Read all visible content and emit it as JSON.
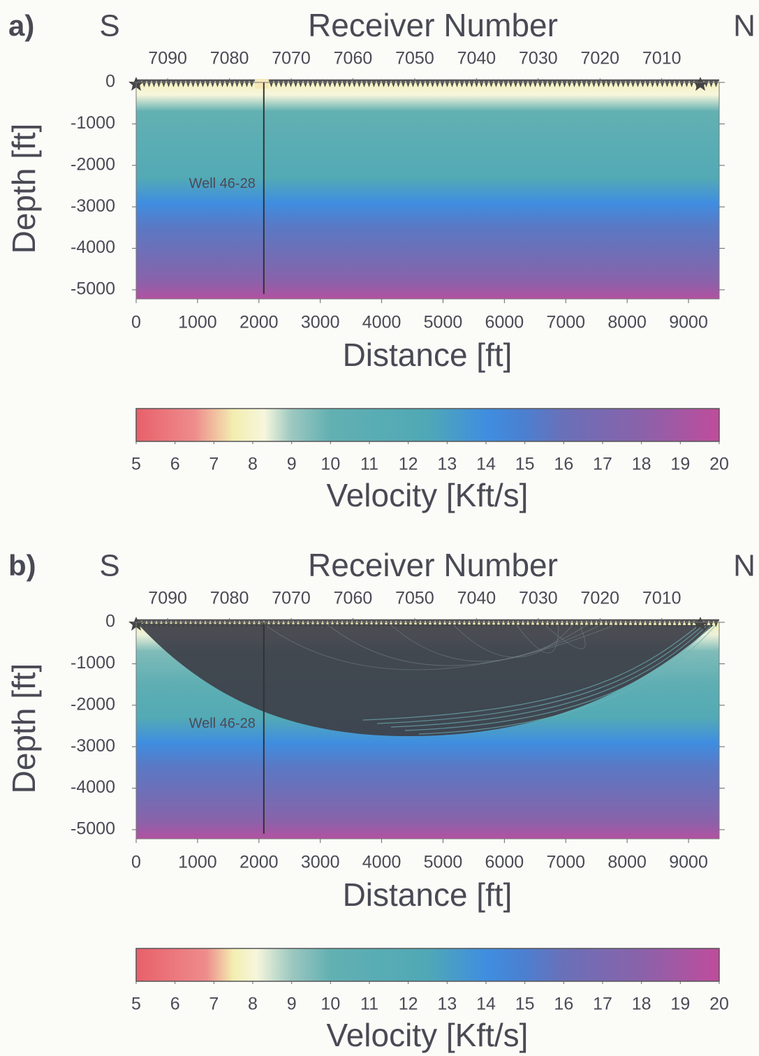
{
  "chart_data": [
    {
      "type": "heatmap",
      "panel_label": "a)",
      "left_label": "S",
      "right_label": "N",
      "x2label": "Receiver Number",
      "x2lim": [
        7095.1,
        7000.7
      ],
      "x2ticks": [
        7090,
        7080,
        7070,
        7060,
        7050,
        7040,
        7030,
        7020,
        7010
      ],
      "xlabel": "Distance [ft]",
      "xlim": [
        0,
        9500
      ],
      "xticks": [
        0,
        1000,
        2000,
        3000,
        4000,
        5000,
        6000,
        7000,
        8000,
        9000
      ],
      "ylabel": "Depth [ft]",
      "ylim": [
        -5220,
        0
      ],
      "yticks": [
        0,
        -1000,
        -2000,
        -3000,
        -4000,
        -5000
      ],
      "annotation": {
        "text": "Well 46-28",
        "x": 2080,
        "y": [
          0,
          -5100
        ],
        "text_depth": -2450
      },
      "velocity_profile": {
        "depth": [
          0,
          -300,
          -700,
          -1500,
          -2300,
          -2900,
          -3500,
          -4200,
          -4800,
          -5220
        ],
        "velocity": [
          7.8,
          8.3,
          10,
          11,
          12,
          14,
          15.5,
          16.5,
          18,
          19.5
        ]
      },
      "colorbar": {
        "label": "Velocity [Kft/s]",
        "lim": [
          5,
          20
        ],
        "ticks": [
          5,
          6,
          7,
          8,
          9,
          10,
          11,
          12,
          13,
          14,
          15,
          16,
          17,
          18,
          19,
          20
        ],
        "colormap": {
          "values": [
            5,
            6.5,
            7.5,
            8.3,
            9,
            10,
            12.5,
            14,
            15,
            16,
            18,
            20
          ],
          "colors": [
            "#e8606a",
            "#ee8c8c",
            "#f3eeb0",
            "#f6f6dc",
            "#9cc8c0",
            "#62b0b2",
            "#4fa8b6",
            "#3f8ee0",
            "#4c7fd0",
            "#6a70b8",
            "#8a62aa",
            "#c04c9c"
          ]
        }
      }
    },
    {
      "type": "heatmap",
      "panel_label": "b)",
      "left_label": "S",
      "right_label": "N",
      "x2label": "Receiver Number",
      "x2lim": [
        7095.1,
        7000.7
      ],
      "x2ticks": [
        7090,
        7080,
        7070,
        7060,
        7050,
        7040,
        7030,
        7020,
        7010
      ],
      "xlabel": "Distance [ft]",
      "xlim": [
        0,
        9500
      ],
      "xticks": [
        0,
        1000,
        2000,
        3000,
        4000,
        5000,
        6000,
        7000,
        8000,
        9000
      ],
      "ylabel": "Depth [ft]",
      "ylim": [
        -5220,
        0
      ],
      "yticks": [
        0,
        -1000,
        -2000,
        -3000,
        -4000,
        -5000
      ],
      "annotation": {
        "text": "Well 46-28",
        "x": 2080,
        "y": [
          0,
          -5100
        ],
        "text_depth": -2450
      },
      "velocity_profile": {
        "depth": [
          0,
          -300,
          -700,
          -1500,
          -2300,
          -2900,
          -3500,
          -4200,
          -4800,
          -5220
        ],
        "velocity": [
          7.5,
          8.2,
          9.5,
          10.5,
          12,
          14,
          15.5,
          16.5,
          18,
          19.5
        ]
      },
      "colorbar": {
        "label": "Velocity [Kft/s]",
        "lim": [
          5,
          20
        ],
        "ticks": [
          5,
          6,
          7,
          8,
          9,
          10,
          11,
          12,
          13,
          14,
          15,
          16,
          17,
          18,
          19,
          20
        ],
        "colormap": {
          "values": [
            5,
            6.8,
            7.5,
            8.1,
            9,
            10,
            12.5,
            14,
            15,
            16,
            18,
            20
          ],
          "colors": [
            "#e8606a",
            "#ee8c8c",
            "#f3eeb0",
            "#f6f6dc",
            "#9cc8c0",
            "#62b0b2",
            "#4fa8b6",
            "#3f8ee0",
            "#4c7fd0",
            "#6a70b8",
            "#8a62aa",
            "#c04c9c"
          ]
        }
      }
    }
  ]
}
